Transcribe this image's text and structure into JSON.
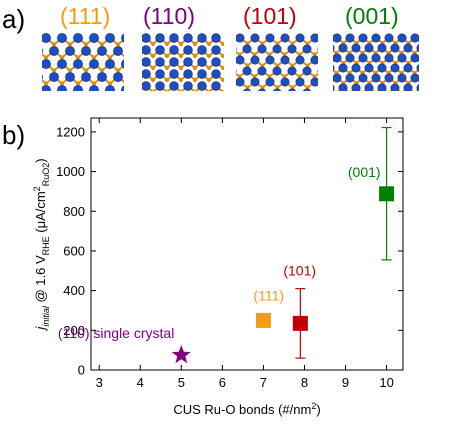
{
  "panels": {
    "a_label": "a)",
    "b_label": "b)",
    "facets": [
      {
        "label": "(111)",
        "color": "#f39c12"
      },
      {
        "label": "(110)",
        "color": "#800080"
      },
      {
        "label": "(101)",
        "color": "#c00000"
      },
      {
        "label": "(001)",
        "color": "#008000"
      }
    ],
    "atom_colors": {
      "ru": "#1f4fbf",
      "o": "#e08a10"
    }
  },
  "chart_data": {
    "type": "scatter",
    "title": "",
    "xlabel_main": "CUS Ru-O bonds (#/nm",
    "xlabel_sup": "2",
    "xlabel_end": ")",
    "ylabel_parts": {
      "j": "j",
      "j_sub": "initial",
      "mid": " @ 1.6 V",
      "v_sub": "RHE",
      "unit_open": " (μA/cm",
      "unit_sup": "2",
      "unit_sub": "RuO2",
      "unit_close": ")"
    },
    "xlim": [
      2.8,
      10.4
    ],
    "ylim": [
      0,
      1270
    ],
    "xticks": [
      3,
      4,
      5,
      6,
      7,
      8,
      9,
      10
    ],
    "yticks": [
      0,
      200,
      400,
      600,
      800,
      1000,
      1200
    ],
    "points": [
      {
        "label": "(110) single crystal",
        "x": 5,
        "y": 75,
        "marker": "star",
        "color": "#800080",
        "err": null
      },
      {
        "label": "(111)",
        "x": 7,
        "y": 250,
        "marker": "square",
        "color": "#f39c12",
        "err": null
      },
      {
        "label": "(101)",
        "x": 7.9,
        "y": 235,
        "marker": "square",
        "color": "#c00000",
        "err": [
          60,
          410
        ]
      },
      {
        "label": "(001)",
        "x": 10,
        "y": 888,
        "marker": "square",
        "color": "#008000",
        "err": [
          555,
          1222
        ]
      }
    ]
  }
}
